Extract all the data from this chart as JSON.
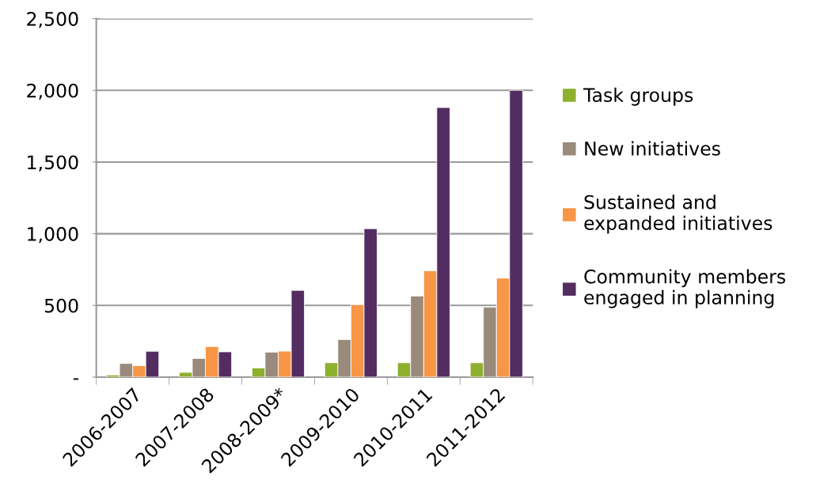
{
  "chart_data": {
    "type": "bar",
    "categories": [
      "2006-2007",
      "2007-2008",
      "2008-2009*",
      "2009-2010",
      "2010-2011",
      "2011-2012"
    ],
    "series": [
      {
        "name": "Task groups",
        "color": "#8db02f",
        "values": [
          15,
          33,
          64,
          100,
          100,
          100
        ]
      },
      {
        "name": "New initiatives",
        "color": "#998a7c",
        "values": [
          95,
          130,
          174,
          262,
          565,
          488
        ]
      },
      {
        "name": "Sustained and\nexpanded initiatives",
        "color": "#f79646",
        "values": [
          80,
          213,
          181,
          505,
          742,
          690
        ]
      },
      {
        "name": "Community members\nengaged in planning",
        "color": "#532d61",
        "values": [
          180,
          176,
          605,
          1035,
          1880,
          2000
        ]
      }
    ],
    "ylim": [
      0,
      2500
    ],
    "yticks": [
      {
        "value": 0,
        "label": "-"
      },
      {
        "value": 500,
        "label": "500"
      },
      {
        "value": 1000,
        "label": "1,000"
      },
      {
        "value": 1500,
        "label": "1,500"
      },
      {
        "value": 2000,
        "label": "2,000"
      },
      {
        "value": 2500,
        "label": "2,500"
      }
    ],
    "grid": "y",
    "legend": "right"
  }
}
